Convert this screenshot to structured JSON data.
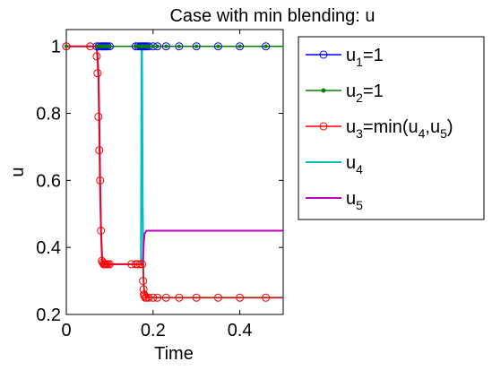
{
  "chart_data": {
    "type": "line",
    "title": "Case with min blending: u",
    "xlabel": "Time",
    "ylabel": "u",
    "xlim": [
      0,
      0.5
    ],
    "ylim": [
      0.2,
      1.05
    ],
    "xticks": [
      0,
      0.2,
      0.4
    ],
    "yticks": [
      0.2,
      0.4,
      0.6,
      0.8,
      1
    ],
    "xtick_labels": [
      "0",
      "0.2",
      "0.4"
    ],
    "ytick_labels": [
      "0.2",
      "0.4",
      "0.6",
      "0.8",
      "1"
    ],
    "grid": false,
    "legend_position": "outside-right",
    "series": [
      {
        "name": "u1=1",
        "legend": {
          "main": "u",
          "sub": "1",
          "rest": "=1"
        },
        "color": "#0000ff",
        "marker": "circle",
        "x": [
          0,
          0.5
        ],
        "y": [
          1,
          1
        ],
        "marker_x": [
          0.0,
          0.07,
          0.075,
          0.08,
          0.083,
          0.086,
          0.089,
          0.092,
          0.095,
          0.1,
          0.16,
          0.165,
          0.17,
          0.173,
          0.176,
          0.179,
          0.182,
          0.185,
          0.19,
          0.2,
          0.21,
          0.23,
          0.26,
          0.3,
          0.35,
          0.4,
          0.46
        ]
      },
      {
        "name": "u2=1",
        "legend": {
          "main": "u",
          "sub": "2",
          "rest": "=1"
        },
        "color": "#008000",
        "marker": "dot",
        "x": [
          0,
          0.5
        ],
        "y": [
          1,
          1
        ],
        "marker_x": [
          0.0,
          0.07,
          0.075,
          0.08,
          0.083,
          0.086,
          0.089,
          0.092,
          0.095,
          0.1,
          0.16,
          0.165,
          0.17,
          0.173,
          0.176,
          0.179,
          0.182,
          0.185,
          0.19,
          0.2,
          0.21,
          0.23,
          0.26,
          0.3,
          0.35,
          0.4,
          0.46
        ]
      },
      {
        "name": "u3=min(u4,u5)",
        "legend": {
          "main": "u",
          "sub": "3",
          "rest": "=min(u",
          "sub2": "4",
          "rest2": ",u",
          "sub3": "5",
          "rest3": ")"
        },
        "color": "#ff0000",
        "marker": "circle",
        "x": [
          0,
          0.07,
          0.072,
          0.074,
          0.076,
          0.078,
          0.08,
          0.083,
          0.086,
          0.09,
          0.1,
          0.15,
          0.165,
          0.172,
          0.175,
          0.177,
          0.178,
          0.179,
          0.18,
          0.182,
          0.185,
          0.19,
          0.2,
          0.25,
          0.3,
          0.4,
          0.5
        ],
        "y": [
          1,
          1,
          0.97,
          0.92,
          0.79,
          0.6,
          0.45,
          0.36,
          0.35,
          0.35,
          0.35,
          0.35,
          0.35,
          0.35,
          0.35,
          0.34,
          0.3,
          0.275,
          0.26,
          0.255,
          0.25,
          0.25,
          0.25,
          0.25,
          0.25,
          0.25,
          0.25
        ],
        "marker_x": [
          0,
          0.055,
          0.07,
          0.072,
          0.074,
          0.076,
          0.078,
          0.08,
          0.082,
          0.084,
          0.086,
          0.088,
          0.09,
          0.093,
          0.096,
          0.1,
          0.15,
          0.16,
          0.165,
          0.17,
          0.175,
          0.177,
          0.178,
          0.179,
          0.18,
          0.182,
          0.185,
          0.19,
          0.2,
          0.21,
          0.23,
          0.26,
          0.3,
          0.35,
          0.4,
          0.46
        ],
        "marker_y": [
          1,
          1,
          0.97,
          0.92,
          0.79,
          0.69,
          0.6,
          0.45,
          0.36,
          0.355,
          0.35,
          0.35,
          0.35,
          0.35,
          0.35,
          0.35,
          0.35,
          0.35,
          0.35,
          0.35,
          0.35,
          0.3,
          0.275,
          0.26,
          0.255,
          0.25,
          0.25,
          0.25,
          0.25,
          0.25,
          0.25,
          0.25,
          0.25,
          0.25,
          0.25,
          0.25
        ]
      },
      {
        "name": "u4",
        "legend": {
          "main": "u",
          "sub": "4",
          "rest": ""
        },
        "color": "#00bfbf",
        "marker": "none",
        "x": [
          0,
          0.07,
          0.074,
          0.078,
          0.082,
          0.09,
          0.1,
          0.15,
          0.172,
          0.1735,
          0.1745,
          0.176,
          0.178,
          0.18,
          0.183,
          0.19,
          0.2,
          0.3,
          0.4,
          0.5
        ],
        "y": [
          1,
          1,
          0.9,
          0.55,
          0.36,
          0.35,
          0.35,
          0.35,
          0.35,
          1.0,
          1.0,
          0.55,
          0.3,
          0.27,
          0.255,
          0.25,
          0.25,
          0.25,
          0.25,
          0.25
        ]
      },
      {
        "name": "u5",
        "legend": {
          "main": "u",
          "sub": "5",
          "rest": ""
        },
        "color": "#bf00bf",
        "marker": "none",
        "x": [
          0,
          0.07,
          0.072,
          0.074,
          0.076,
          0.078,
          0.08,
          0.083,
          0.086,
          0.09,
          0.1,
          0.15,
          0.17,
          0.176,
          0.178,
          0.18,
          0.185,
          0.19,
          0.2,
          0.3,
          0.4,
          0.5
        ],
        "y": [
          1,
          1,
          0.97,
          0.92,
          0.79,
          0.6,
          0.45,
          0.36,
          0.35,
          0.35,
          0.35,
          0.35,
          0.35,
          0.35,
          0.4,
          0.44,
          0.45,
          0.45,
          0.45,
          0.45,
          0.45,
          0.45
        ]
      }
    ]
  }
}
